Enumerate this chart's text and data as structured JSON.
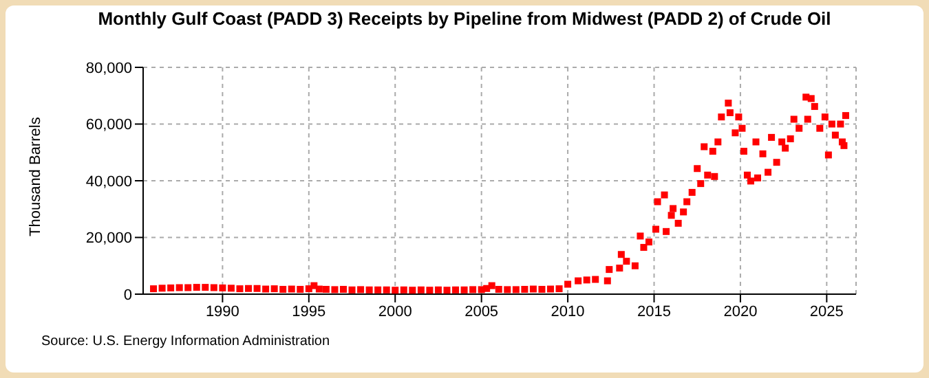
{
  "chart_data": {
    "type": "scatter",
    "title": "Monthly Gulf Coast (PADD 3) Receipts by Pipeline from Midwest (PADD 2) of Crude Oil",
    "ylabel": "Thousand Barrels",
    "annotations": [
      "Source: U.S. Energy Information Administration"
    ],
    "x": [
      1986.0,
      1986.5,
      1987.0,
      1987.5,
      1988.0,
      1988.5,
      1989.0,
      1989.5,
      1990.0,
      1990.5,
      1991.0,
      1991.5,
      1992.0,
      1992.5,
      1993.0,
      1993.5,
      1994.0,
      1994.5,
      1995.0,
      1995.3,
      1995.6,
      1996.0,
      1996.5,
      1997.0,
      1997.5,
      1998.0,
      1998.5,
      1999.0,
      1999.5,
      2000.0,
      2000.5,
      2001.0,
      2001.5,
      2002.0,
      2002.5,
      2003.0,
      2003.5,
      2004.0,
      2004.5,
      2005.0,
      2005.3,
      2005.6,
      2006.0,
      2006.5,
      2007.0,
      2007.5,
      2008.0,
      2008.5,
      2009.0,
      2009.5,
      2010.0,
      2010.6,
      2011.1,
      2011.6,
      2012.3,
      2012.4,
      2013.0,
      2013.1,
      2013.4,
      2013.9,
      2014.2,
      2014.4,
      2014.7,
      2015.1,
      2015.2,
      2015.6,
      2015.7,
      2016.0,
      2016.1,
      2016.4,
      2016.7,
      2016.9,
      2017.2,
      2017.5,
      2017.7,
      2017.9,
      2018.1,
      2018.4,
      2018.5,
      2018.7,
      2018.9,
      2019.3,
      2019.4,
      2019.7,
      2019.9,
      2020.1,
      2020.2,
      2020.4,
      2020.6,
      2020.9,
      2021.0,
      2021.3,
      2021.6,
      2021.8,
      2022.1,
      2022.4,
      2022.6,
      2022.9,
      2023.1,
      2023.4,
      2023.8,
      2023.9,
      2024.1,
      2024.3,
      2024.6,
      2024.9,
      2025.1,
      2025.3,
      2025.5,
      2025.8,
      2025.9,
      2026.0,
      2026.1
    ],
    "values": [
      1900,
      2100,
      2200,
      2300,
      2300,
      2400,
      2400,
      2300,
      2200,
      2100,
      1900,
      2000,
      2000,
      1800,
      1900,
      1700,
      1800,
      1700,
      1900,
      3000,
      1800,
      1700,
      1600,
      1700,
      1500,
      1600,
      1500,
      1500,
      1500,
      1400,
      1500,
      1400,
      1500,
      1400,
      1500,
      1400,
      1500,
      1500,
      1600,
      1600,
      2000,
      3000,
      1700,
      1600,
      1600,
      1700,
      1800,
      1700,
      1800,
      1900,
      3500,
      4700,
      5000,
      5200,
      4700,
      8700,
      9200,
      14000,
      11600,
      10000,
      20500,
      16500,
      18400,
      22900,
      32600,
      35000,
      22100,
      27800,
      30200,
      25000,
      29000,
      32600,
      35900,
      44300,
      39000,
      52000,
      42000,
      50400,
      41500,
      53700,
      62500,
      67400,
      64000,
      56900,
      62500,
      58500,
      50400,
      42000,
      39900,
      53700,
      41000,
      49500,
      43000,
      55300,
      46500,
      53700,
      51500,
      54800,
      61700,
      58500,
      69500,
      61700,
      69000,
      66200,
      58500,
      62500,
      49100,
      60000,
      56100,
      60000,
      53700,
      52400,
      63000
    ],
    "color": "#ff0000",
    "marker": "square",
    "xlim": [
      1985.4,
      2026.7
    ],
    "xticks": [
      1990,
      1995,
      2000,
      2005,
      2010,
      2015,
      2020,
      2025
    ],
    "ylim": [
      0,
      80000
    ],
    "yticks": [
      0,
      {
        "value": 20000,
        "label": "20,000"
      },
      {
        "value": 40000,
        "label": "40,000"
      },
      {
        "value": 60000,
        "label": "60,000"
      },
      {
        "value": 80000,
        "label": "80,000"
      }
    ],
    "grid": true
  }
}
